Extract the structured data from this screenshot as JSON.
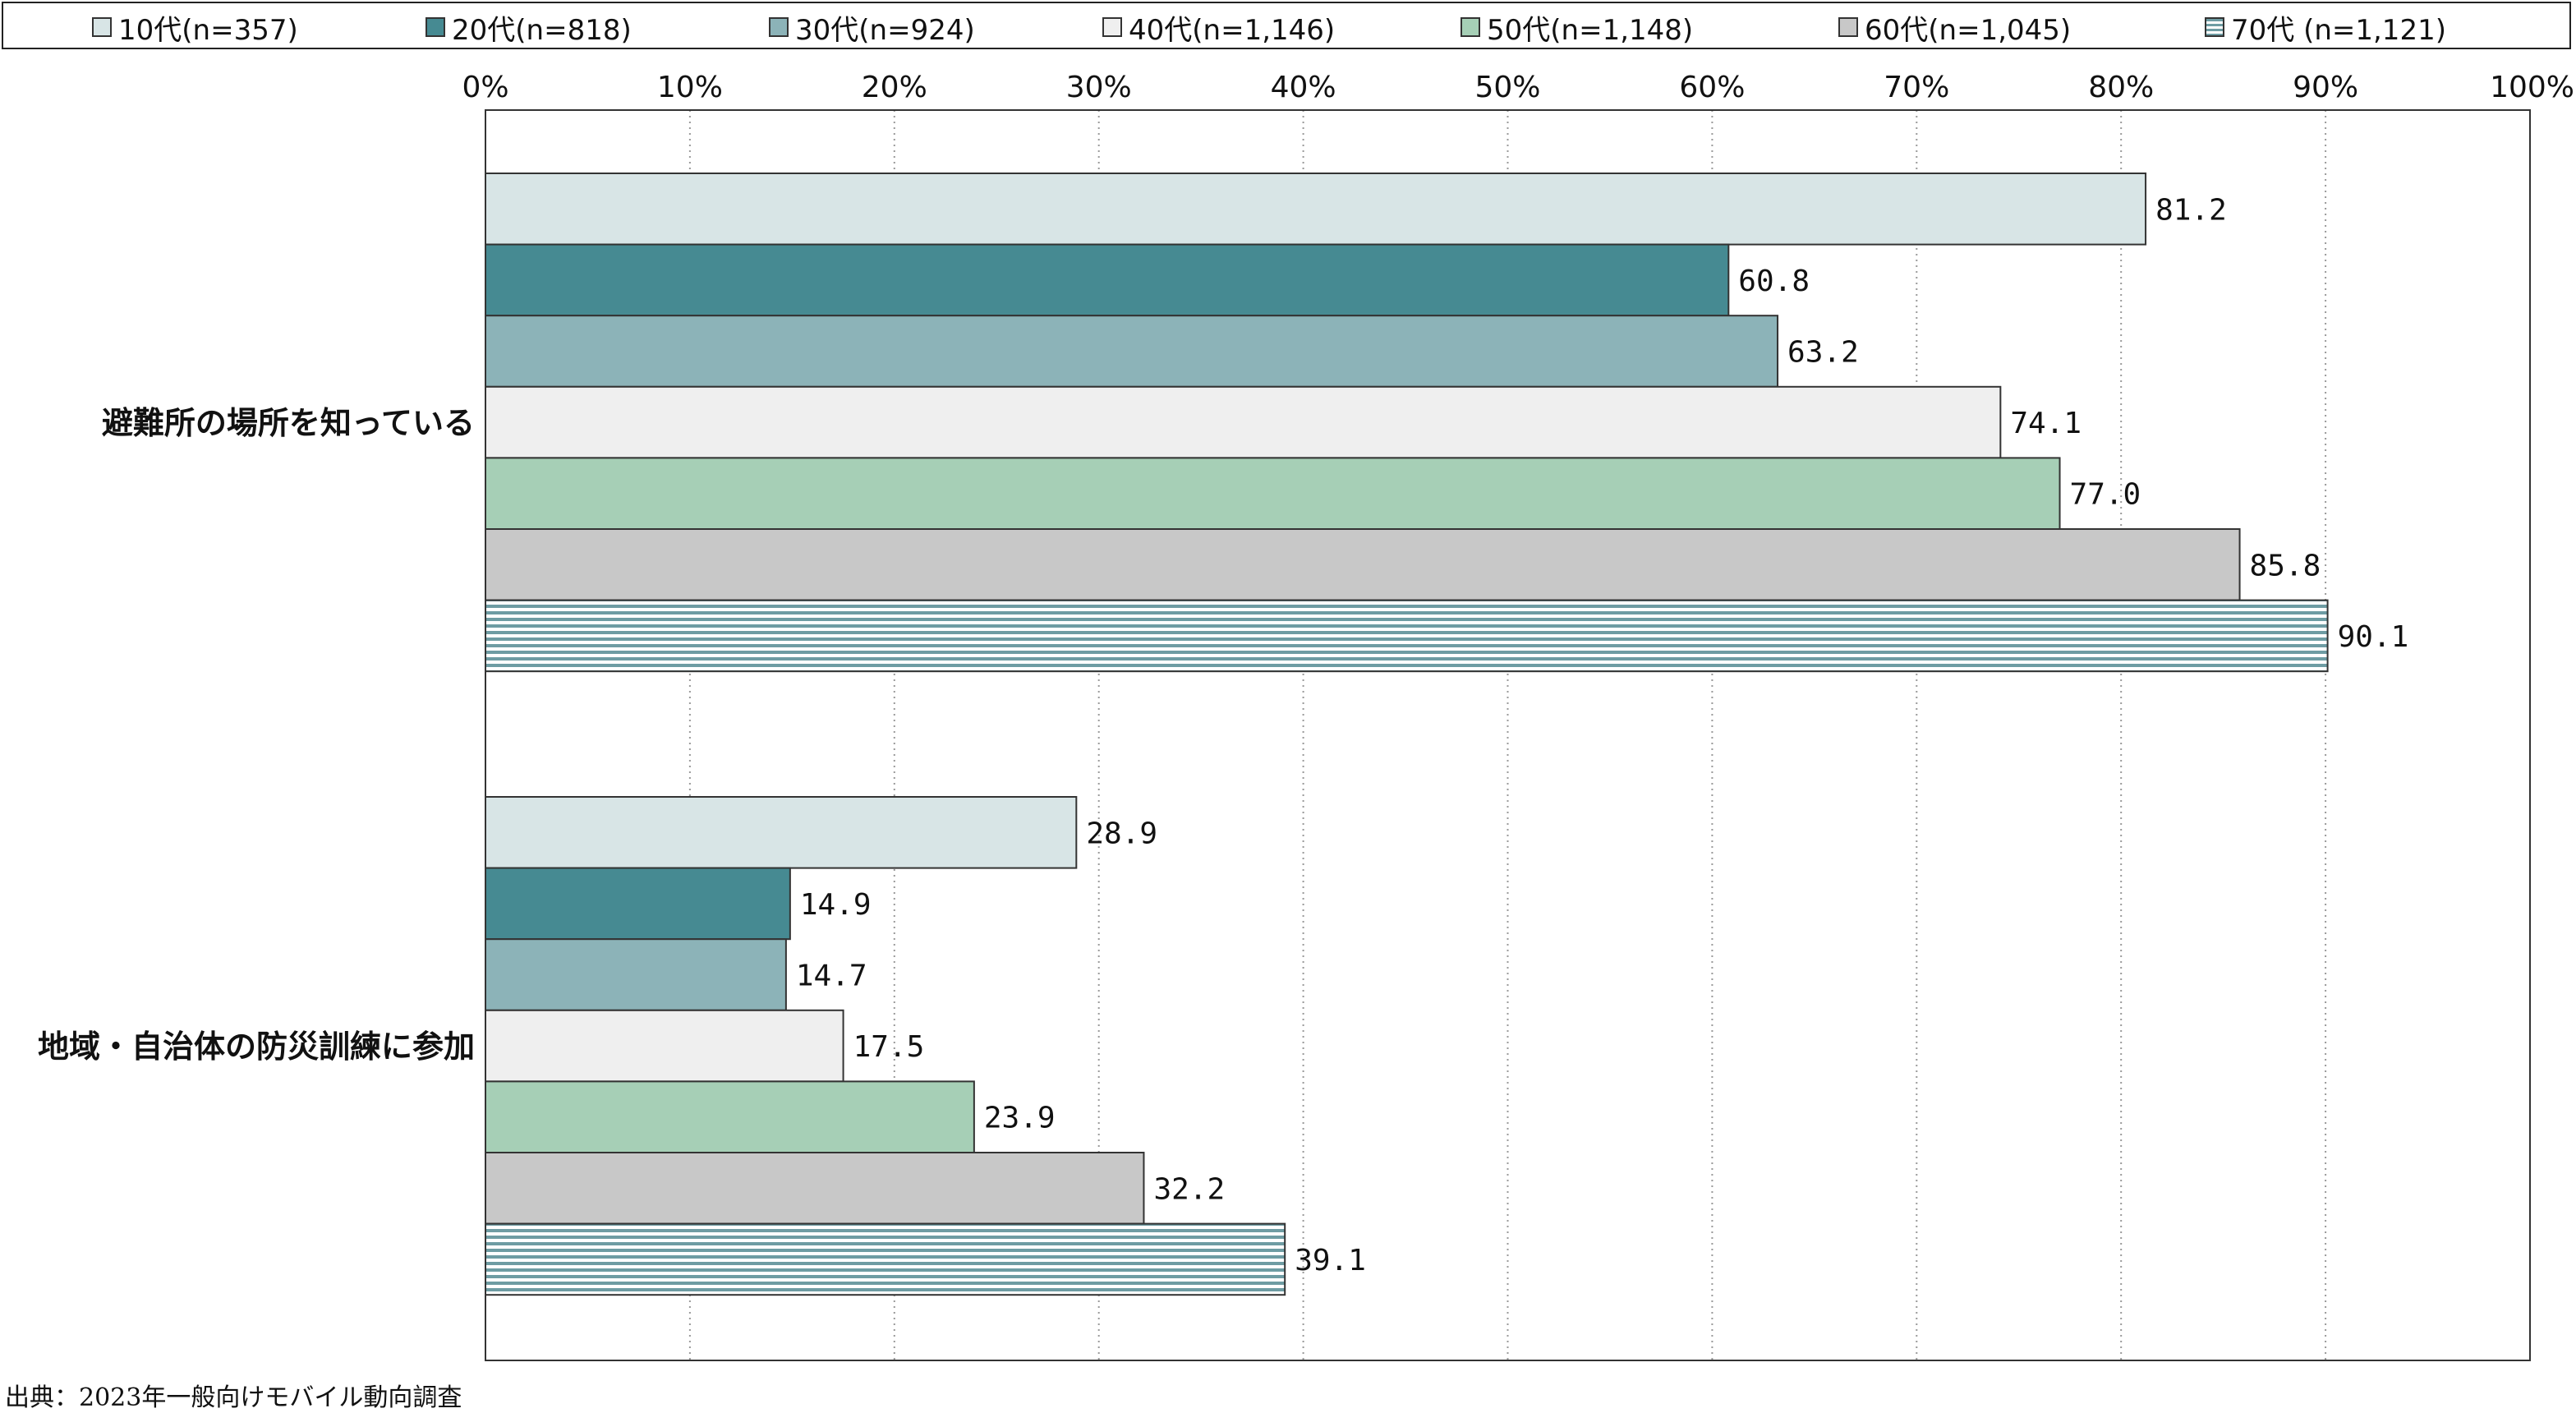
{
  "chart_data": {
    "type": "bar",
    "orientation": "horizontal",
    "title": "",
    "xlabel": "",
    "ylabel": "",
    "xlim": [
      0,
      100
    ],
    "x_ticks": [
      "0%",
      "10%",
      "20%",
      "30%",
      "40%",
      "50%",
      "60%",
      "70%",
      "80%",
      "90%",
      "100%"
    ],
    "grid": "vertical dotted",
    "legend_position": "top",
    "categories": [
      "避難所の場所を知っている",
      "地域・自治体の防災訓練に参加"
    ],
    "series": [
      {
        "name": "10代(n=357)",
        "values": [
          81.2,
          28.9
        ],
        "labels": [
          "81.2",
          "28.9"
        ],
        "color": "#d8e5e6",
        "pattern": "solid"
      },
      {
        "name": "20代(n=818)",
        "values": [
          60.8,
          14.9
        ],
        "labels": [
          "60.8",
          "14.9"
        ],
        "color": "#468a92",
        "pattern": "solid"
      },
      {
        "name": "30代(n=924)",
        "values": [
          63.2,
          14.7
        ],
        "labels": [
          "63.2",
          "14.7"
        ],
        "color": "#8cb3b8",
        "pattern": "solid"
      },
      {
        "name": "40代(n=1,146)",
        "values": [
          74.1,
          17.5
        ],
        "labels": [
          "74.1",
          "17.5"
        ],
        "color": "#efefef",
        "pattern": "solid"
      },
      {
        "name": "50代(n=1,148)",
        "values": [
          77.0,
          23.9
        ],
        "labels": [
          "77.0",
          "23.9"
        ],
        "color": "#a6cfb6",
        "pattern": "solid"
      },
      {
        "name": "60代(n=1,045)",
        "values": [
          85.8,
          32.2
        ],
        "labels": [
          "85.8",
          "32.2"
        ],
        "color": "#c8c8c8",
        "pattern": "solid"
      },
      {
        "name": "70代 (n=1,121)",
        "values": [
          90.1,
          39.1
        ],
        "labels": [
          "90.1",
          "39.1"
        ],
        "color": "#8cb3b8",
        "pattern": "horizontal-stripes"
      }
    ]
  },
  "source": "出典：2023年一般向けモバイル動向調査"
}
